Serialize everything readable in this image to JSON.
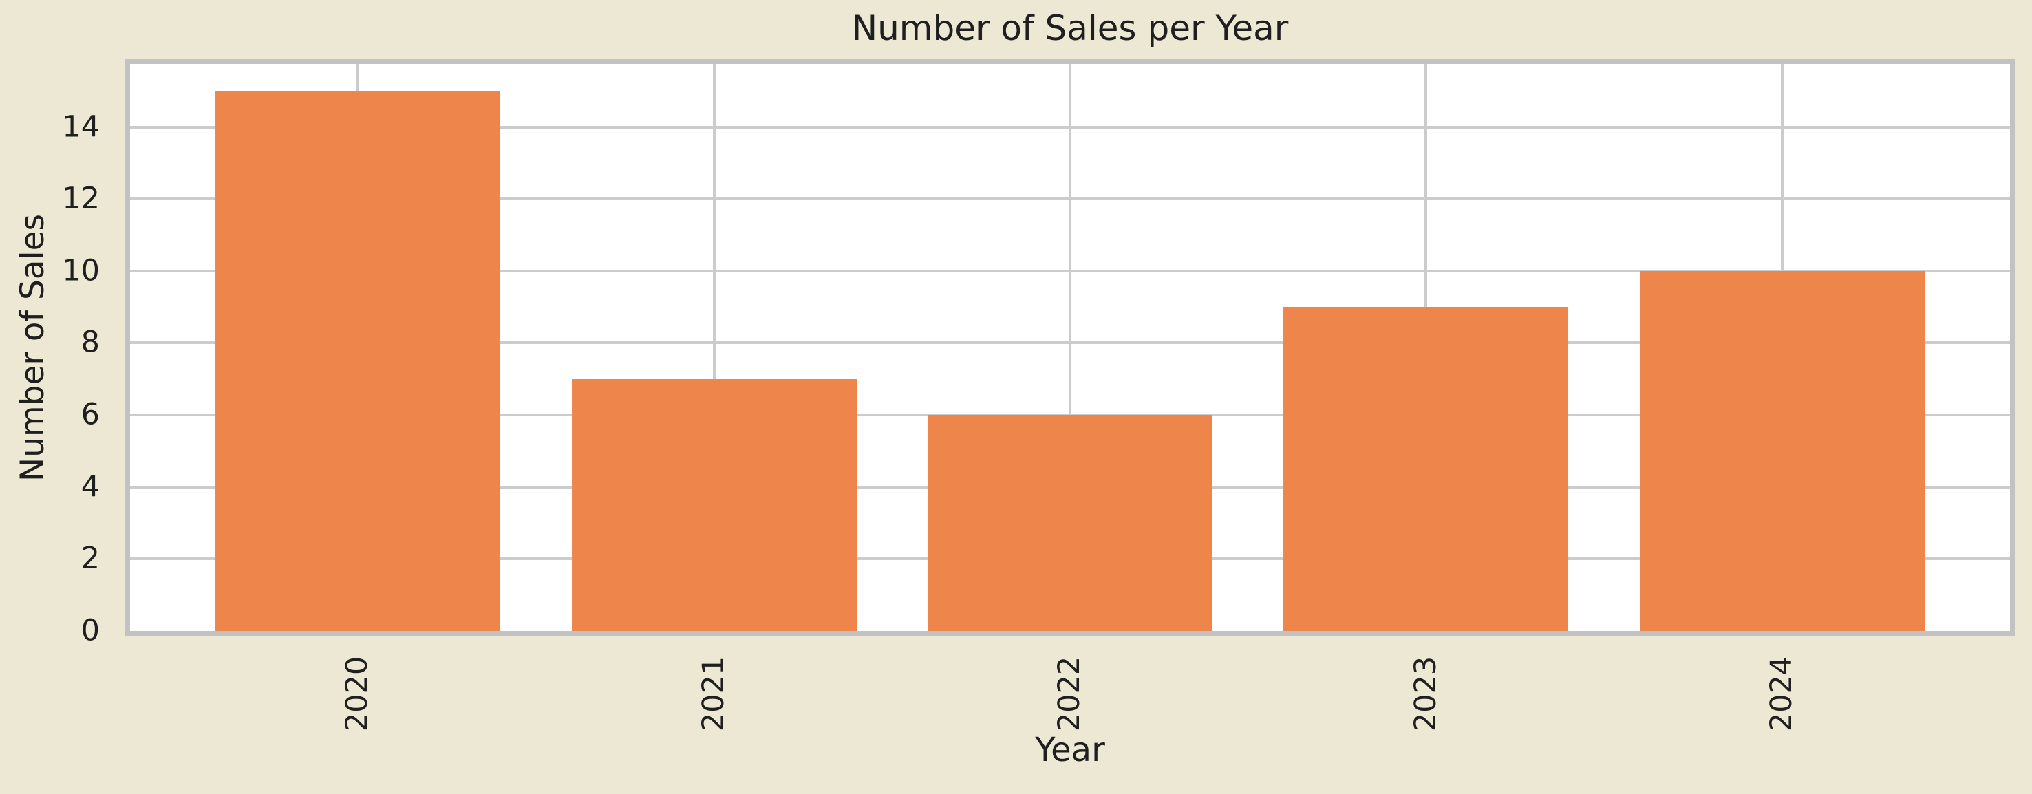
{
  "chart_data": {
    "type": "bar",
    "title": "Number of Sales per Year",
    "xlabel": "Year",
    "ylabel": "Number of Sales",
    "categories": [
      "2020",
      "2021",
      "2022",
      "2023",
      "2024"
    ],
    "values": [
      15,
      7,
      6,
      9,
      10
    ],
    "ylim": [
      0,
      15.75
    ],
    "yticks": [
      0,
      2,
      4,
      6,
      8,
      10,
      12,
      14
    ],
    "xtick_rotation_deg": 90,
    "grid": true,
    "legend": false,
    "bar_width_fraction": 0.8,
    "colors": {
      "bar": "#EE854B",
      "figure_background": "#EDE8D4",
      "plot_background": "#FFFFFF",
      "grid": "#CCCCCC",
      "spine": "#C2C2C2",
      "text": "#1F1F1F"
    }
  }
}
